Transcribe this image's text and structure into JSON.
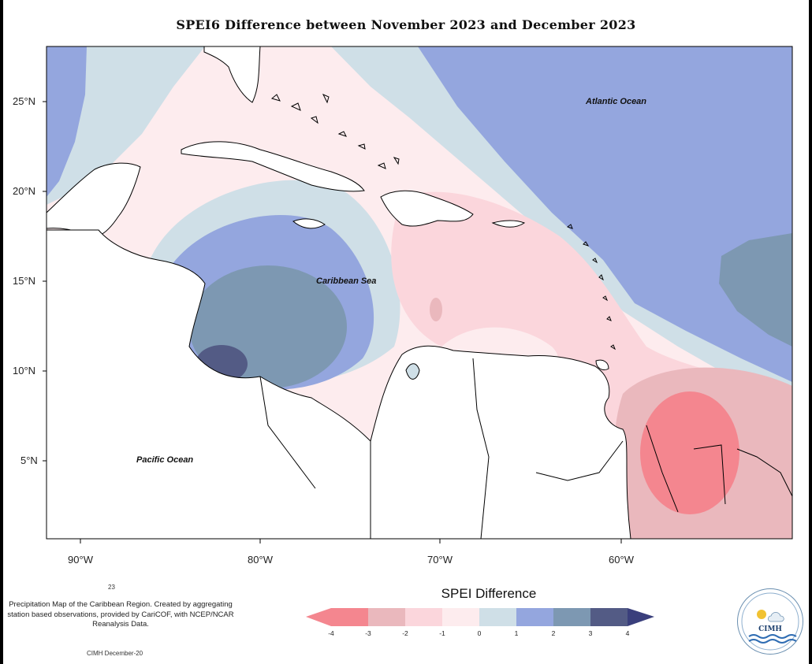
{
  "title": "SPEI6 Difference between November 2023 and December 2023",
  "axes": {
    "latitude_labels": [
      "25°N",
      "20°N",
      "15°N",
      "10°N",
      "5°N"
    ],
    "longitude_labels": [
      "90°W",
      "80°W",
      "70°W",
      "60°W"
    ]
  },
  "map_labels": {
    "atlantic": "Atlantic Ocean",
    "caribbean": "Caribbean Sea",
    "pacific": "Pacific Ocean"
  },
  "footnotes": {
    "small": "23",
    "description": "Precipitation Map of the Caribbean Region. Created by aggregating station based observations, provided by CariCOF, with NCEP/NCAR Reanalysis Data.",
    "credit": "CIMH December-20"
  },
  "legend": {
    "title": "SPEI Difference",
    "ticks": [
      "-4",
      "-3",
      "-2",
      "-1",
      "0",
      "1",
      "2",
      "3",
      "4"
    ],
    "colors": [
      "#f4868f",
      "#eab8bd",
      "#fbd6dc",
      "#fdecee",
      "#cfdfe7",
      "#94a6de",
      "#7d98b2",
      "#535b85",
      "#3a3f7c"
    ]
  },
  "logo": {
    "text": "CIMH"
  }
}
